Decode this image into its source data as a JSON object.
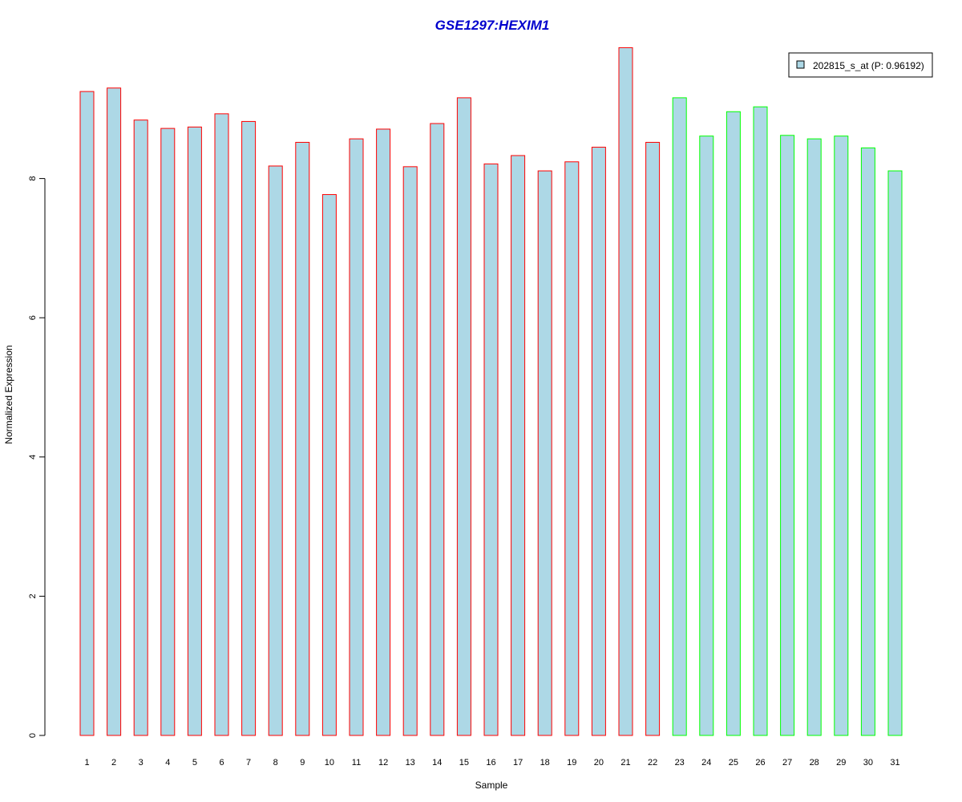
{
  "chart_data": {
    "type": "bar",
    "title": "GSE1297:HEXIM1",
    "xlabel": "Sample",
    "ylabel": "Normalized Expression",
    "categories": [
      "1",
      "2",
      "3",
      "4",
      "5",
      "6",
      "7",
      "8",
      "9",
      "10",
      "11",
      "12",
      "13",
      "14",
      "15",
      "16",
      "17",
      "18",
      "19",
      "20",
      "21",
      "22",
      "23",
      "24",
      "25",
      "26",
      "27",
      "28",
      "29",
      "30",
      "31"
    ],
    "values": [
      9.25,
      9.3,
      8.84,
      8.72,
      8.74,
      8.93,
      8.82,
      8.18,
      8.52,
      7.77,
      8.57,
      8.71,
      8.17,
      8.79,
      9.16,
      8.21,
      8.33,
      8.11,
      8.24,
      8.45,
      9.88,
      8.52,
      9.16,
      8.61,
      8.96,
      9.03,
      8.62,
      8.57,
      8.61,
      8.44,
      8.11
    ],
    "groups": [
      "red",
      "red",
      "red",
      "red",
      "red",
      "red",
      "red",
      "red",
      "red",
      "red",
      "red",
      "red",
      "red",
      "red",
      "red",
      "red",
      "red",
      "red",
      "red",
      "red",
      "red",
      "red",
      "green",
      "green",
      "green",
      "green",
      "green",
      "green",
      "green",
      "green",
      "green"
    ],
    "yticks": [
      0,
      2,
      4,
      6,
      8
    ],
    "ylim": [
      0,
      9.88
    ],
    "legend": {
      "label": "202815_s_at (P: 0.96192)",
      "position": "top-right"
    },
    "colors": {
      "bar_fill": "#add8e6",
      "red_group": "#ff0000",
      "green_group": "#00ff00",
      "title": "#0000cd",
      "axis": "#000000"
    }
  }
}
